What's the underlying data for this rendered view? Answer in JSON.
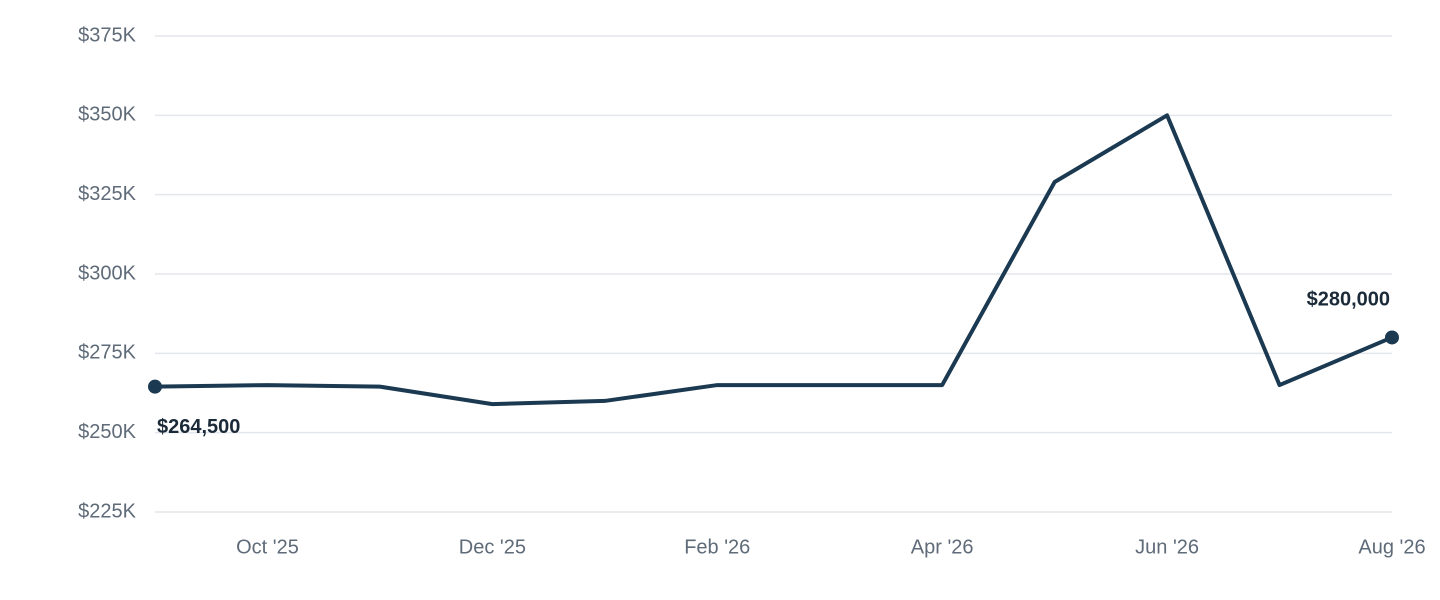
{
  "chart_data": {
    "type": "line",
    "categories": [
      null,
      "Oct '25",
      null,
      "Dec '25",
      null,
      "Feb '26",
      null,
      "Apr '26",
      null,
      "Jun '26",
      null,
      "Aug '26"
    ],
    "series": [
      {
        "color": "#1b3a52",
        "values": [
          264500,
          265000,
          264500,
          259000,
          260000,
          265000,
          265000,
          265000,
          329000,
          350000,
          265000,
          280000
        ],
        "value_labels": [
          "$264,500",
          null,
          null,
          null,
          null,
          null,
          null,
          null,
          null,
          null,
          null,
          "$280,000"
        ]
      }
    ],
    "ylim": [
      225000,
      375000
    ],
    "yticks": [
      {
        "value": 225000,
        "label": "$225K"
      },
      {
        "value": 250000,
        "label": "$250K"
      },
      {
        "value": 275000,
        "label": "$275K"
      },
      {
        "value": 300000,
        "label": "$300K"
      },
      {
        "value": 325000,
        "label": "$325K"
      },
      {
        "value": 350000,
        "label": "$350K"
      },
      {
        "value": 375000,
        "label": "$375K"
      }
    ],
    "grid": true
  }
}
